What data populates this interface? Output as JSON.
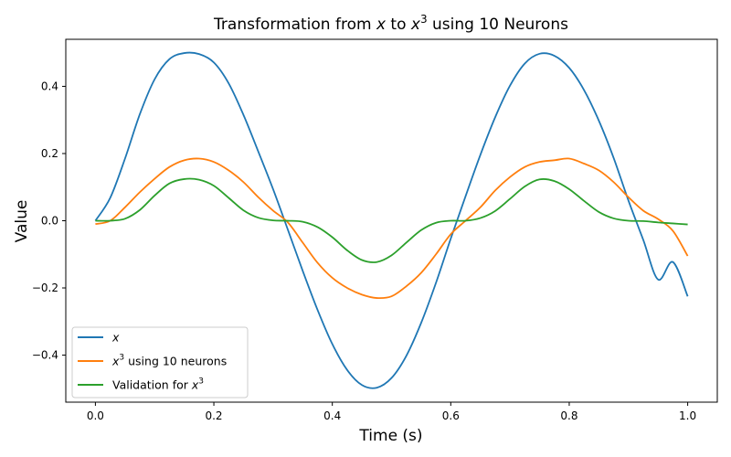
{
  "chart_data": {
    "type": "line",
    "title": {
      "prefix": "Transformation from ",
      "var1": "x",
      "middle": " to ",
      "var2": "x",
      "sup": "3",
      "suffix": " using 10 Neurons"
    },
    "xlabel": "Time (s)",
    "ylabel": "Value",
    "xlim": [
      -0.05,
      1.05
    ],
    "ylim": [
      -0.54,
      0.54
    ],
    "xticks": [
      0.0,
      0.2,
      0.4,
      0.6,
      0.8,
      1.0
    ],
    "xtick_labels": [
      "0.0",
      "0.2",
      "0.4",
      "0.6",
      "0.8",
      "1.0"
    ],
    "yticks": [
      -0.4,
      -0.2,
      0.0,
      0.2,
      0.4
    ],
    "ytick_labels": [
      "−0.4",
      "−0.2",
      "0.0",
      "0.2",
      "0.4"
    ],
    "legend_position": "lower-left",
    "series": [
      {
        "key": "x",
        "name": "x",
        "color": "#1f77b4",
        "x": [
          0.0,
          0.025,
          0.05,
          0.075,
          0.1,
          0.125,
          0.15,
          0.175,
          0.2,
          0.225,
          0.25,
          0.275,
          0.3,
          0.325,
          0.35,
          0.375,
          0.4,
          0.425,
          0.45,
          0.475,
          0.5,
          0.525,
          0.55,
          0.575,
          0.6,
          0.625,
          0.65,
          0.675,
          0.7,
          0.725,
          0.75,
          0.775,
          0.8,
          0.825,
          0.85,
          0.875,
          0.9,
          0.925,
          0.95,
          0.975,
          1.0
        ],
        "values": [
          0.0,
          0.068,
          0.185,
          0.317,
          0.421,
          0.481,
          0.499,
          0.496,
          0.471,
          0.409,
          0.315,
          0.206,
          0.094,
          -0.027,
          -0.149,
          -0.265,
          -0.367,
          -0.444,
          -0.489,
          -0.497,
          -0.468,
          -0.402,
          -0.304,
          -0.185,
          -0.053,
          0.073,
          0.196,
          0.308,
          0.402,
          0.468,
          0.497,
          0.491,
          0.455,
          0.389,
          0.298,
          0.187,
          0.06,
          -0.057,
          -0.175,
          -0.123,
          -0.225
        ]
      },
      {
        "key": "decoded",
        "name": "using 10 neurons",
        "color": "#ff7f0e",
        "x": [
          0.0,
          0.025,
          0.05,
          0.075,
          0.1,
          0.125,
          0.15,
          0.175,
          0.2,
          0.225,
          0.25,
          0.275,
          0.3,
          0.325,
          0.35,
          0.375,
          0.4,
          0.425,
          0.45,
          0.475,
          0.5,
          0.525,
          0.55,
          0.575,
          0.6,
          0.625,
          0.65,
          0.675,
          0.7,
          0.725,
          0.75,
          0.775,
          0.8,
          0.825,
          0.85,
          0.875,
          0.9,
          0.925,
          0.95,
          0.975,
          1.0
        ],
        "values": [
          -0.01,
          0.0,
          0.04,
          0.085,
          0.125,
          0.16,
          0.18,
          0.185,
          0.175,
          0.15,
          0.115,
          0.07,
          0.03,
          -0.005,
          -0.065,
          -0.125,
          -0.17,
          -0.2,
          -0.22,
          -0.23,
          -0.225,
          -0.195,
          -0.155,
          -0.1,
          -0.04,
          0.0,
          0.04,
          0.09,
          0.13,
          0.16,
          0.175,
          0.18,
          0.185,
          0.17,
          0.15,
          0.115,
          0.07,
          0.03,
          0.005,
          -0.03,
          -0.105
        ]
      },
      {
        "key": "validation",
        "name": "Validation for",
        "color": "#2ca02c",
        "x": [
          0.0,
          0.025,
          0.05,
          0.075,
          0.1,
          0.125,
          0.15,
          0.175,
          0.2,
          0.225,
          0.25,
          0.275,
          0.3,
          0.325,
          0.35,
          0.375,
          0.4,
          0.425,
          0.45,
          0.475,
          0.5,
          0.525,
          0.55,
          0.575,
          0.6,
          0.625,
          0.65,
          0.675,
          0.7,
          0.725,
          0.75,
          0.775,
          0.8,
          0.825,
          0.85,
          0.875,
          0.9,
          0.925,
          0.95,
          0.975,
          1.0
        ],
        "values": [
          0.0,
          0.0,
          0.006,
          0.032,
          0.075,
          0.111,
          0.124,
          0.122,
          0.104,
          0.068,
          0.031,
          0.009,
          0.001,
          0.0,
          -0.003,
          -0.019,
          -0.049,
          -0.088,
          -0.117,
          -0.123,
          -0.103,
          -0.065,
          -0.028,
          -0.006,
          0.0,
          0.0,
          0.008,
          0.029,
          0.065,
          0.102,
          0.123,
          0.118,
          0.094,
          0.059,
          0.026,
          0.007,
          0.0,
          -0.001,
          -0.005,
          -0.008,
          -0.011
        ]
      }
    ],
    "legend": [
      {
        "key": "x",
        "var": "x",
        "sup": "",
        "text": "",
        "color": "#1f77b4"
      },
      {
        "key": "decoded",
        "var": "x",
        "sup": "3",
        "text": " using 10 neurons",
        "color": "#ff7f0e"
      },
      {
        "key": "validation",
        "var": "x",
        "sup": "3",
        "text": "Validation for ",
        "color": "#2ca02c"
      }
    ]
  }
}
